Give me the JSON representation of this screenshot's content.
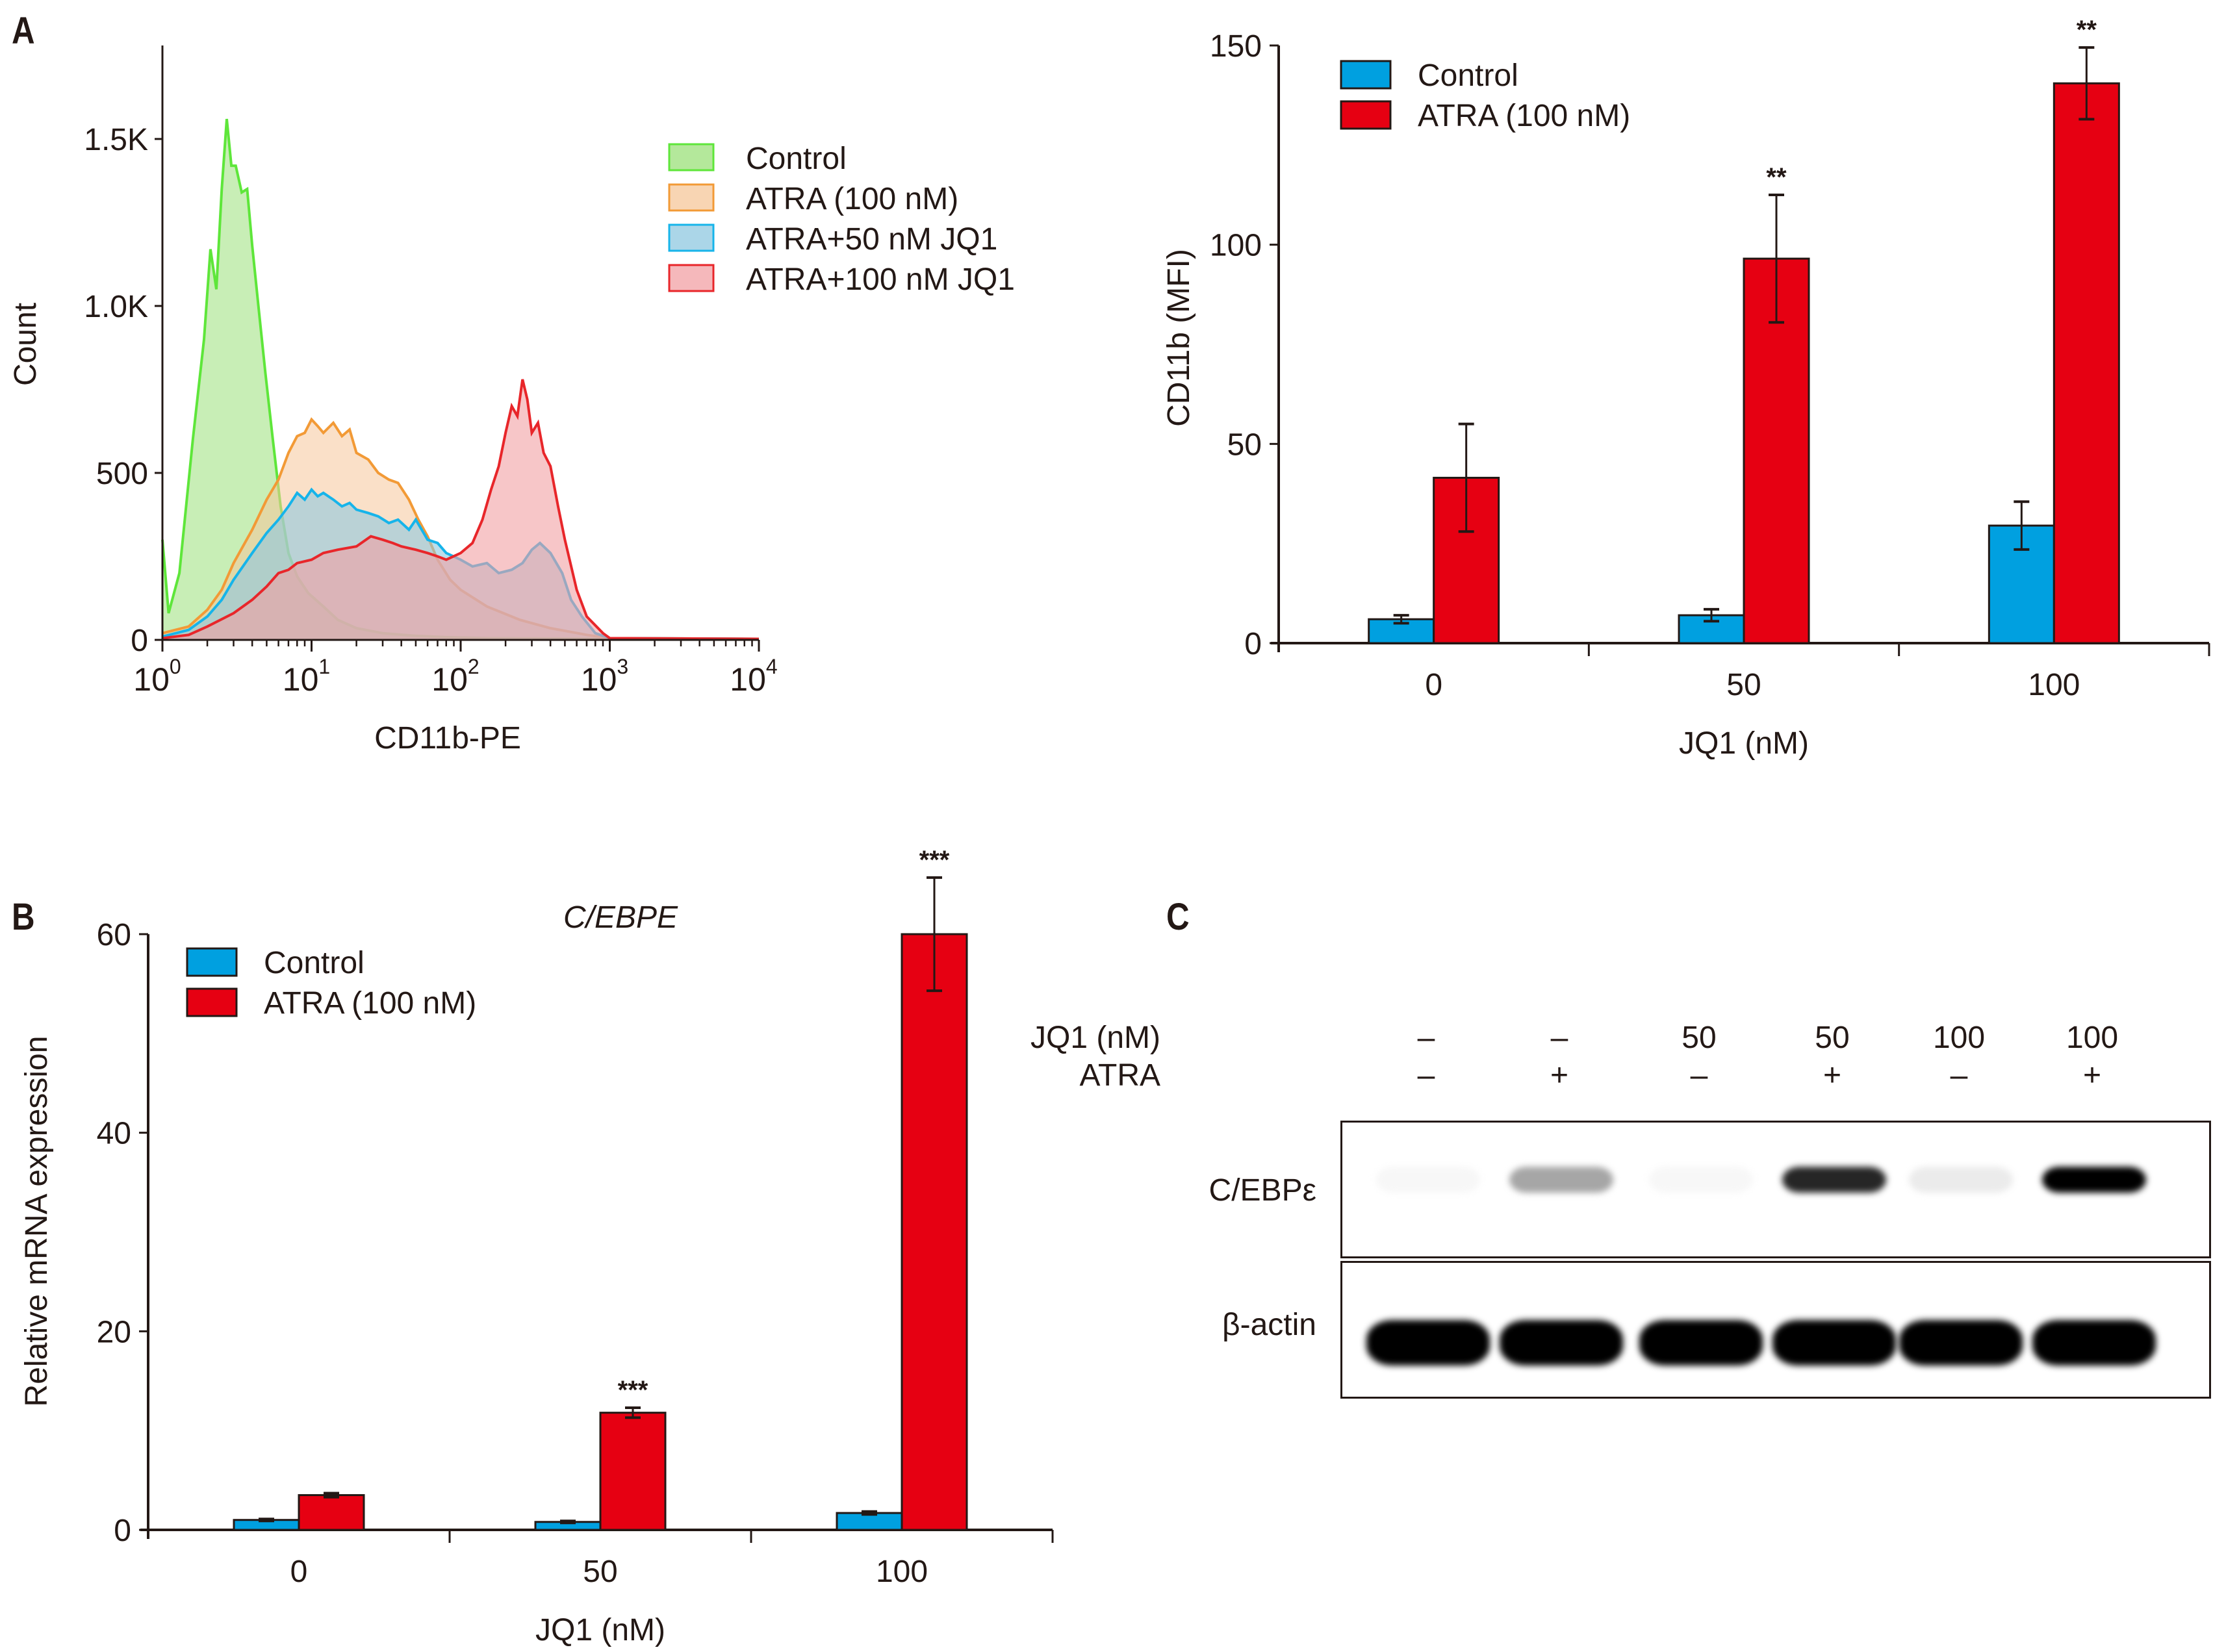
{
  "panels": {
    "A_label": "A",
    "B_label": "B",
    "C_label": "C"
  },
  "chart_data": [
    {
      "id": "flow-histogram",
      "type": "area",
      "title": "",
      "xlabel": "CD11b-PE",
      "ylabel": "Count",
      "xscale": "log",
      "xlim": [
        1,
        10000
      ],
      "ylim": [
        0,
        1780
      ],
      "xticks": [
        {
          "base": "10",
          "exp": "0",
          "value": 1
        },
        {
          "base": "10",
          "exp": "1",
          "value": 10
        },
        {
          "base": "10",
          "exp": "2",
          "value": 100
        },
        {
          "base": "10",
          "exp": "3",
          "value": 1000
        },
        {
          "base": "10",
          "exp": "4",
          "value": 10000
        }
      ],
      "yticks": [
        {
          "label": "0",
          "value": 0
        },
        {
          "label": "500",
          "value": 500
        },
        {
          "label": "1.0K",
          "value": 1000
        },
        {
          "label": "1.5K",
          "value": 1500
        }
      ],
      "legend_position": "top-right",
      "series": [
        {
          "name": "Control",
          "line": "#5ee63a",
          "fill": "#9be07a",
          "fill_opacity": 0.55,
          "x": [
            1,
            1.1,
            1.3,
            1.6,
            1.9,
            2.1,
            2.3,
            2.5,
            2.7,
            2.9,
            3.1,
            3.4,
            3.7,
            4.0,
            4.4,
            4.9,
            5.5,
            6.2,
            7.0,
            8.0,
            9.5,
            12,
            15,
            20,
            30,
            50,
            80,
            150,
            400,
            1000,
            10000
          ],
          "y": [
            300,
            80,
            200,
            600,
            900,
            1170,
            1050,
            1350,
            1560,
            1420,
            1420,
            1340,
            1350,
            1180,
            1000,
            800,
            600,
            400,
            260,
            190,
            140,
            100,
            60,
            35,
            20,
            12,
            8,
            5,
            4,
            3,
            3
          ]
        },
        {
          "name": "ATRA (100 nM)",
          "line": "#f29a36",
          "fill": "#f6c79a",
          "fill_opacity": 0.55,
          "x": [
            1,
            1.5,
            2,
            2.5,
            3,
            4,
            5,
            6,
            7,
            8,
            9,
            10,
            11,
            12,
            14,
            16,
            18,
            20,
            24,
            28,
            33,
            38,
            45,
            52,
            60,
            70,
            85,
            100,
            150,
            250,
            400,
            700,
            1000,
            10000
          ],
          "y": [
            20,
            40,
            90,
            150,
            230,
            330,
            420,
            480,
            560,
            610,
            620,
            660,
            640,
            620,
            650,
            610,
            630,
            560,
            540,
            500,
            480,
            470,
            420,
            360,
            310,
            240,
            180,
            150,
            100,
            60,
            35,
            15,
            5,
            3
          ]
        },
        {
          "name": "ATRA+50 nM JQ1",
          "line": "#16b4ea",
          "fill": "#8fc8e0",
          "fill_opacity": 0.6,
          "x": [
            1,
            1.5,
            2,
            2.5,
            3,
            4,
            5,
            6,
            7,
            8,
            9,
            10,
            11,
            12,
            14,
            16,
            18,
            20,
            24,
            28,
            33,
            38,
            45,
            50,
            60,
            70,
            80,
            100,
            120,
            150,
            180,
            220,
            260,
            300,
            340,
            400,
            480,
            550,
            650,
            800,
            1000,
            10000
          ],
          "y": [
            10,
            30,
            70,
            120,
            180,
            260,
            320,
            360,
            400,
            440,
            420,
            450,
            430,
            440,
            420,
            400,
            410,
            390,
            380,
            370,
            350,
            360,
            330,
            360,
            300,
            290,
            260,
            240,
            220,
            230,
            200,
            210,
            230,
            270,
            290,
            260,
            200,
            120,
            70,
            20,
            5,
            3
          ]
        },
        {
          "name": "ATRA+100 nM JQ1",
          "line": "#e8262a",
          "fill": "#f2a0a4",
          "fill_opacity": 0.6,
          "x": [
            1,
            1.5,
            2,
            3,
            4,
            5,
            6,
            7,
            8,
            10,
            12,
            15,
            20,
            25,
            30,
            35,
            40,
            50,
            60,
            70,
            80,
            100,
            120,
            140,
            160,
            180,
            200,
            220,
            240,
            260,
            280,
            300,
            330,
            360,
            400,
            450,
            500,
            600,
            700,
            900,
            1000,
            10000
          ],
          "y": [
            5,
            15,
            40,
            80,
            120,
            160,
            200,
            210,
            230,
            240,
            260,
            270,
            280,
            310,
            300,
            290,
            280,
            270,
            260,
            250,
            240,
            260,
            290,
            360,
            450,
            520,
            620,
            700,
            670,
            780,
            720,
            620,
            650,
            560,
            520,
            400,
            300,
            150,
            70,
            20,
            5,
            3
          ]
        }
      ]
    },
    {
      "id": "cd11b-mfi-bar",
      "type": "bar",
      "title": "",
      "xlabel": "JQ1 (nM)",
      "ylabel": "CD11b (MFI)",
      "ylim": [
        0,
        150
      ],
      "yticks": [
        0,
        50,
        100,
        150
      ],
      "categories": [
        "0",
        "50",
        "100"
      ],
      "legend_position": "top-left",
      "series": [
        {
          "name": "Control",
          "color": "#00a0e0",
          "values": [
            6,
            7,
            29.5
          ],
          "errors": [
            1,
            1.5,
            6
          ]
        },
        {
          "name": "ATRA (100 nM)",
          "color": "#e60012",
          "values": [
            41.5,
            96.5,
            140.5
          ],
          "errors": [
            13.5,
            16,
            9
          ]
        }
      ],
      "annotations": [
        {
          "category": "50",
          "series": "ATRA (100 nM)",
          "text": "**"
        },
        {
          "category": "100",
          "series": "ATRA (100 nM)",
          "text": "**"
        }
      ]
    },
    {
      "id": "cebpe-mrna-bar",
      "type": "bar",
      "title": "C/EBPE",
      "xlabel": "JQ1 (nM)",
      "ylabel": "Relative mRNA expression",
      "ylim": [
        0,
        60
      ],
      "yticks": [
        0,
        20,
        40,
        60
      ],
      "categories": [
        "0",
        "50",
        "100"
      ],
      "legend_position": "top-left",
      "series": [
        {
          "name": "Control",
          "color": "#00a0e0",
          "values": [
            1.0,
            0.8,
            1.7
          ],
          "errors": [
            0.1,
            0.1,
            0.15
          ]
        },
        {
          "name": "ATRA (100 nM)",
          "color": "#e60012",
          "values": [
            3.5,
            11.8,
            60.0
          ],
          "errors": [
            0.2,
            0.5,
            5.7
          ]
        }
      ],
      "annotations": [
        {
          "category": "50",
          "series": "ATRA (100 nM)",
          "text": "***"
        },
        {
          "category": "100",
          "series": "ATRA (100 nM)",
          "text": "***"
        }
      ]
    }
  ],
  "western_blot": {
    "row_headers": {
      "jq1": "JQ1 (nM)",
      "atra": "ATRA"
    },
    "lanes": [
      {
        "jq1": "–",
        "atra": "–"
      },
      {
        "jq1": "–",
        "atra": "+"
      },
      {
        "jq1": "50",
        "atra": "–"
      },
      {
        "jq1": "50",
        "atra": "+"
      },
      {
        "jq1": "100",
        "atra": "–"
      },
      {
        "jq1": "100",
        "atra": "+"
      }
    ],
    "blots": [
      {
        "label": "C/EBPε",
        "intensities": [
          0.03,
          0.35,
          0.03,
          0.85,
          0.08,
          1.0
        ]
      },
      {
        "label": "β-actin",
        "intensities": [
          1.0,
          1.0,
          1.0,
          1.0,
          1.0,
          1.0
        ]
      }
    ]
  }
}
